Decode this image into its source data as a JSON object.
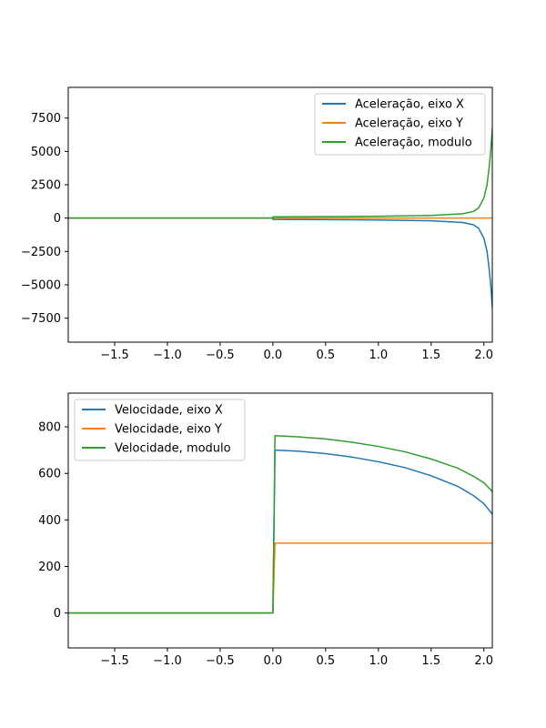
{
  "chart_data": [
    {
      "type": "line",
      "title": "",
      "xlabel": "",
      "ylabel": "",
      "xlim": [
        -1.94,
        2.08
      ],
      "ylim": [
        -9300,
        9800
      ],
      "x_ticks": [
        -1.5,
        -1.0,
        -0.5,
        0.0,
        0.5,
        1.0,
        1.5,
        2.0
      ],
      "x_tick_labels": [
        "−1.5",
        "−1.0",
        "−0.5",
        "0.0",
        "0.5",
        "1.0",
        "1.5",
        "2.0"
      ],
      "y_ticks": [
        -7500,
        -5000,
        -2500,
        0,
        2500,
        5000,
        7500
      ],
      "y_tick_labels": [
        "−7500",
        "−5000",
        "−2500",
        "0",
        "2500",
        "5000",
        "7500"
      ],
      "legend_position": "top-right",
      "grid": false,
      "series": [
        {
          "name": "Aceleração, eixo X",
          "color": "#1f77b4",
          "x": [
            -1.94,
            0.0,
            0.0,
            0.5,
            1.0,
            1.5,
            1.8,
            1.9,
            1.95,
            2.0,
            2.03,
            2.05,
            2.065,
            2.08
          ],
          "y": [
            0,
            0,
            -100,
            -115,
            -140,
            -200,
            -330,
            -500,
            -760,
            -1500,
            -2500,
            -3800,
            -5000,
            -6700
          ]
        },
        {
          "name": "Aceleração, eixo Y",
          "color": "#ff7f0e",
          "x": [
            -1.94,
            0.0,
            0.0,
            2.08
          ],
          "y": [
            0,
            0,
            0,
            0
          ]
        },
        {
          "name": "Aceleração, modulo",
          "color": "#2ca02c",
          "x": [
            -1.94,
            0.0,
            0.0,
            0.5,
            1.0,
            1.5,
            1.8,
            1.9,
            1.95,
            2.0,
            2.03,
            2.05,
            2.065,
            2.08
          ],
          "y": [
            0,
            0,
            100,
            115,
            140,
            200,
            330,
            500,
            760,
            1500,
            2500,
            3800,
            5000,
            6700
          ]
        }
      ]
    },
    {
      "type": "line",
      "title": "",
      "xlabel": "",
      "ylabel": "",
      "xlim": [
        -1.94,
        2.08
      ],
      "ylim": [
        -150,
        945
      ],
      "x_ticks": [
        -1.5,
        -1.0,
        -0.5,
        0.0,
        0.5,
        1.0,
        1.5,
        2.0
      ],
      "x_tick_labels": [
        "−1.5",
        "−1.0",
        "−0.5",
        "0.0",
        "0.5",
        "1.0",
        "1.5",
        "2.0"
      ],
      "y_ticks": [
        0,
        200,
        400,
        600,
        800
      ],
      "y_tick_labels": [
        "0",
        "200",
        "400",
        "600",
        "800"
      ],
      "legend_position": "top-left",
      "grid": false,
      "series": [
        {
          "name": "Velocidade, eixo X",
          "color": "#1f77b4",
          "x": [
            -1.94,
            0.0,
            0.02,
            0.25,
            0.5,
            0.75,
            1.0,
            1.25,
            1.5,
            1.75,
            1.9,
            2.0,
            2.08
          ],
          "y": [
            0,
            0,
            700,
            695,
            685,
            670,
            650,
            625,
            590,
            545,
            505,
            470,
            425
          ]
        },
        {
          "name": "Velocidade, eixo Y",
          "color": "#ff7f0e",
          "x": [
            -1.94,
            0.0,
            0.02,
            2.08
          ],
          "y": [
            0,
            0,
            300,
            300
          ]
        },
        {
          "name": "Velocidade, modulo",
          "color": "#2ca02c",
          "x": [
            -1.94,
            0.0,
            0.02,
            0.25,
            0.5,
            0.75,
            1.0,
            1.25,
            1.5,
            1.75,
            1.9,
            2.0,
            2.08
          ],
          "y": [
            0,
            0,
            762,
            757,
            748,
            734,
            716,
            693,
            662,
            623,
            588,
            560,
            522
          ]
        }
      ]
    }
  ]
}
